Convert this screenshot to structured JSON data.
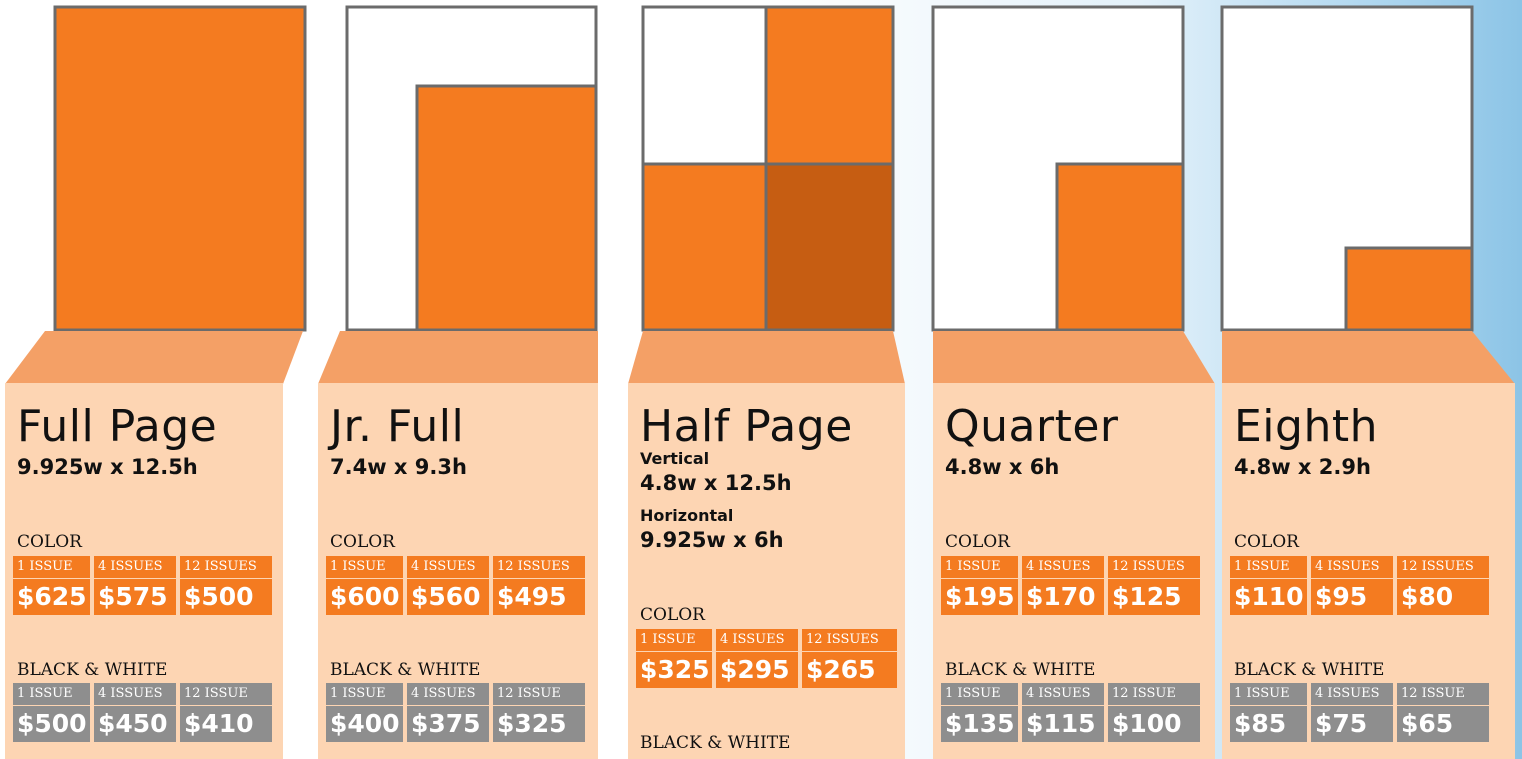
{
  "columns": [
    {
      "title": "Full Page",
      "size": "9.925w x 12.5h",
      "color": {
        "label": "COLOR",
        "headers": [
          "1 ISSUE",
          "4 ISSUES",
          "12 ISSUES"
        ],
        "prices": [
          "$625",
          "$575",
          "$500"
        ]
      },
      "bw": {
        "label": "BLACK & WHITE",
        "headers": [
          "1 ISSUE",
          "4 ISSUES",
          "12 ISSUE"
        ],
        "prices": [
          "$500",
          "$450",
          "$410"
        ]
      }
    },
    {
      "title": "Jr. Full",
      "size": "7.4w x 9.3h",
      "color": {
        "label": "COLOR",
        "headers": [
          "1 ISSUE",
          "4 ISSUES",
          "12 ISSUES"
        ],
        "prices": [
          "$600",
          "$560",
          "$495"
        ]
      },
      "bw": {
        "label": "BLACK & WHITE",
        "headers": [
          "1 ISSUE",
          "4 ISSUES",
          "12 ISSUE"
        ],
        "prices": [
          "$400",
          "$375",
          "$325"
        ]
      }
    },
    {
      "title": "Half Page",
      "variants": [
        {
          "label": "Vertical",
          "size": "4.8w x 12.5h"
        },
        {
          "label": "Horizontal",
          "size": "9.925w x 6h"
        }
      ],
      "color": {
        "label": "COLOR",
        "headers": [
          "1 ISSUE",
          "4 ISSUES",
          "12 ISSUES"
        ],
        "prices": [
          "$325",
          "$295",
          "$265"
        ]
      },
      "bw": {
        "label": "BLACK & WHITE"
      }
    },
    {
      "title": "Quarter",
      "size": "4.8w x 6h",
      "color": {
        "label": "COLOR",
        "headers": [
          "1 ISSUE",
          "4 ISSUES",
          "12 ISSUES"
        ],
        "prices": [
          "$195",
          "$170",
          "$125"
        ]
      },
      "bw": {
        "label": "BLACK & WHITE",
        "headers": [
          "1 ISSUE",
          "4 ISSUES",
          "12 ISSUE"
        ],
        "prices": [
          "$135",
          "$115",
          "$100"
        ]
      }
    },
    {
      "title": "Eighth",
      "size": "4.8w x 2.9h",
      "color": {
        "label": "COLOR",
        "headers": [
          "1 ISSUE",
          "4 ISSUES",
          "12 ISSUES"
        ],
        "prices": [
          "$110",
          "$95",
          "$80"
        ]
      },
      "bw": {
        "label": "BLACK & WHITE",
        "headers": [
          "1 ISSUE",
          "4 ISSUES",
          "12 ISSUE"
        ],
        "prices": [
          "$85",
          "$75",
          "$65"
        ]
      }
    }
  ]
}
